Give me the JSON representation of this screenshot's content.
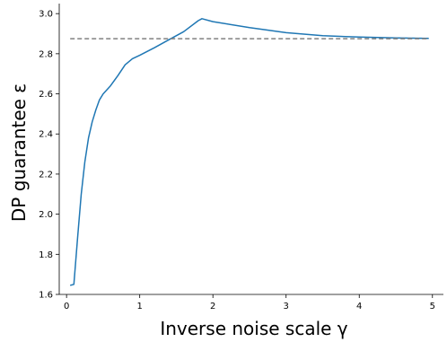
{
  "chart_data": {
    "type": "line",
    "xlabel": "Inverse noise scale γ",
    "ylabel": "DP guarantee ε",
    "xlim": [
      -0.1,
      5.15
    ],
    "ylim": [
      1.6,
      3.05
    ],
    "xticks": [
      0,
      1,
      2,
      3,
      4,
      5
    ],
    "yticks": [
      1.6,
      1.8,
      2.0,
      2.2,
      2.4,
      2.6,
      2.8,
      3.0
    ],
    "xtick_labels": [
      "0",
      "1",
      "2",
      "3",
      "4",
      "5"
    ],
    "ytick_labels": [
      "1.6",
      "1.8",
      "2.0",
      "2.2",
      "2.4",
      "2.6",
      "2.8",
      "3.0"
    ],
    "grid": false,
    "series": [
      {
        "color": "#1f77b4",
        "style": "solid",
        "x": [
          0.05,
          0.1,
          0.15,
          0.2,
          0.25,
          0.3,
          0.35,
          0.4,
          0.45,
          0.5,
          0.6,
          0.7,
          0.8,
          0.9,
          1.0,
          1.2,
          1.4,
          1.6,
          1.8,
          1.85,
          2.0,
          2.5,
          3.0,
          3.5,
          4.0,
          4.5,
          4.95
        ],
        "y": [
          1.645,
          1.65,
          1.88,
          2.1,
          2.26,
          2.38,
          2.46,
          2.52,
          2.57,
          2.6,
          2.64,
          2.69,
          2.745,
          2.775,
          2.792,
          2.83,
          2.87,
          2.91,
          2.965,
          2.975,
          2.96,
          2.93,
          2.905,
          2.89,
          2.883,
          2.879,
          2.877
        ]
      },
      {
        "color": "#808080",
        "style": "dashed",
        "x": [
          0.05,
          4.95
        ],
        "y": [
          2.875,
          2.875
        ]
      }
    ]
  }
}
